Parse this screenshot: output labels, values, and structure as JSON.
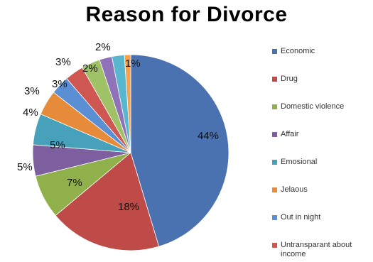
{
  "chart_data": {
    "type": "pie",
    "title": "Reason for Divorce",
    "categories": [
      "Economic",
      "Drug",
      "Domestic violence",
      "Affair",
      "Emosional",
      "Jelaous",
      "Out in night",
      "Untransparant about income",
      "",
      "",
      "",
      ""
    ],
    "values": [
      44,
      18,
      7,
      5,
      5,
      4,
      3,
      3,
      3,
      2,
      2,
      1
    ],
    "labels": [
      "44%",
      "18%",
      "7%",
      "5%",
      "5%",
      "4%",
      "3%",
      "3%",
      "3%",
      "2%",
      "2%",
      "1%"
    ],
    "colors": [
      "#4a72b0",
      "#be4b48",
      "#8fb04a",
      "#7d5fa0",
      "#48a1bb",
      "#e58b3a",
      "#5b8fd4",
      "#cf5752",
      "#9ec265",
      "#8f72b8",
      "#58b6cf",
      "#f4a24e"
    ],
    "legend_position": "right"
  }
}
